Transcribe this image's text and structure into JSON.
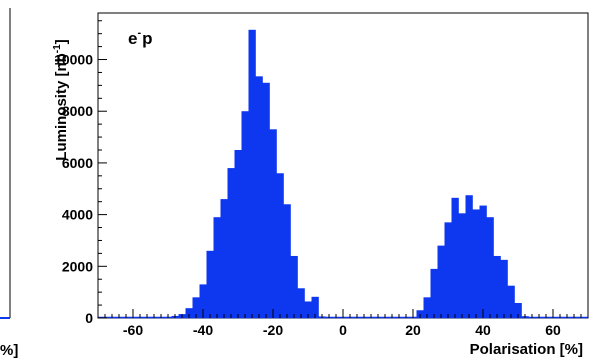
{
  "chart_data": {
    "type": "bar",
    "annotation": {
      "base": "e",
      "superscript": "-",
      "suffix": "p"
    },
    "ylabel": {
      "base": "Luminosity [nb",
      "superscript": "-1",
      "suffix": "]"
    },
    "xlabel": "Polarisation [%]",
    "left_panel_fragment_label": "%]",
    "xlim": [
      -70,
      70
    ],
    "ylim": [
      0,
      11800
    ],
    "x_ticks": [
      -60,
      -40,
      -20,
      0,
      20,
      40,
      60
    ],
    "y_ticks": [
      0,
      2000,
      4000,
      6000,
      8000,
      10000
    ],
    "bin_width": 2,
    "grid": false,
    "bar_color": "#0e37f0",
    "bins": [
      {
        "x": -50,
        "y": 40
      },
      {
        "x": -48,
        "y": 80
      },
      {
        "x": -46,
        "y": 150
      },
      {
        "x": -44,
        "y": 380
      },
      {
        "x": -42,
        "y": 800
      },
      {
        "x": -40,
        "y": 1300
      },
      {
        "x": -38,
        "y": 2600
      },
      {
        "x": -36,
        "y": 3900
      },
      {
        "x": -34,
        "y": 4600
      },
      {
        "x": -32,
        "y": 5800
      },
      {
        "x": -30,
        "y": 6500
      },
      {
        "x": -28,
        "y": 8000
      },
      {
        "x": -26,
        "y": 11150
      },
      {
        "x": -24,
        "y": 9350
      },
      {
        "x": -22,
        "y": 9100
      },
      {
        "x": -20,
        "y": 7300
      },
      {
        "x": -18,
        "y": 5600
      },
      {
        "x": -16,
        "y": 4400
      },
      {
        "x": -14,
        "y": 2400
      },
      {
        "x": -12,
        "y": 1150
      },
      {
        "x": -10,
        "y": 640
      },
      {
        "x": -8,
        "y": 820
      },
      {
        "x": -6,
        "y": 60
      },
      {
        "x": -4,
        "y": 30
      },
      {
        "x": 20,
        "y": 30
      },
      {
        "x": 22,
        "y": 300
      },
      {
        "x": 24,
        "y": 800
      },
      {
        "x": 26,
        "y": 1900
      },
      {
        "x": 28,
        "y": 2800
      },
      {
        "x": 30,
        "y": 3700
      },
      {
        "x": 32,
        "y": 4650
      },
      {
        "x": 34,
        "y": 4050
      },
      {
        "x": 36,
        "y": 4750
      },
      {
        "x": 38,
        "y": 4200
      },
      {
        "x": 40,
        "y": 4350
      },
      {
        "x": 42,
        "y": 3900
      },
      {
        "x": 44,
        "y": 2400
      },
      {
        "x": 46,
        "y": 2250
      },
      {
        "x": 48,
        "y": 1250
      },
      {
        "x": 50,
        "y": 580
      },
      {
        "x": 52,
        "y": 70
      }
    ]
  }
}
